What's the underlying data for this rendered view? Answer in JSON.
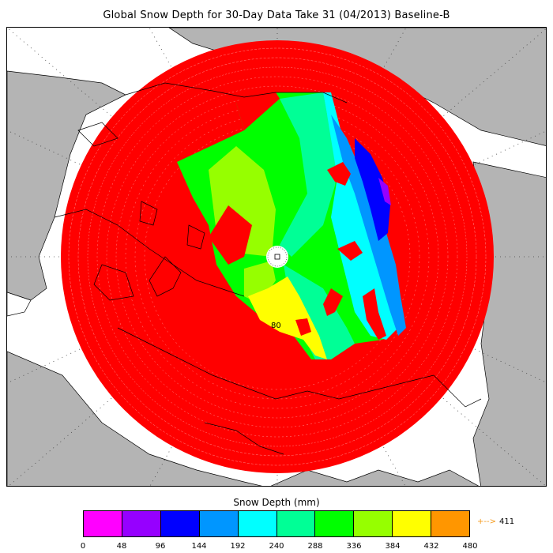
{
  "title": "Global Snow Depth for 30-Day Data Take 31 (04/2013) Baseline-B",
  "legend": {
    "title": "Snow Depth (mm)",
    "colors": [
      "#ff00ff",
      "#9600ff",
      "#0000ff",
      "#0096ff",
      "#00ffff",
      "#00ff96",
      "#00ff00",
      "#96ff00",
      "#ffff00",
      "#ff9600"
    ],
    "ticks": [
      "0",
      "48",
      "96",
      "144",
      "192",
      "240",
      "288",
      "336",
      "384",
      "432",
      "480"
    ],
    "max_value": "411",
    "max_color": "#f59a1d"
  },
  "map": {
    "projection": "polar stereographic (north)",
    "latitude_label": "80",
    "land_color": "#b4b4b4",
    "ocean_color": "#ffffff",
    "no_data_color": "#ff0000",
    "grid": "dotted"
  }
}
